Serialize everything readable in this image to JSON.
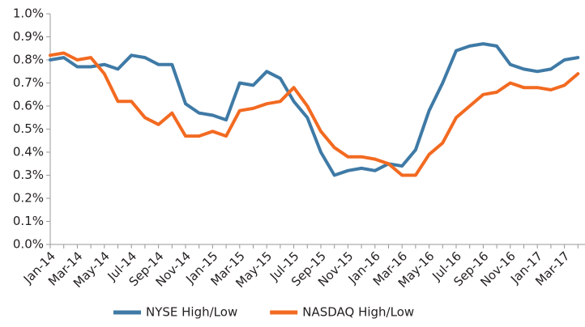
{
  "chart_data": {
    "type": "line",
    "categories": [
      "Jan-14",
      null,
      "Mar-14",
      null,
      "May-14",
      null,
      "Jul-14",
      null,
      "Sep-14",
      null,
      "Nov-14",
      null,
      "Jan-15",
      null,
      "Mar-15",
      null,
      "May-15",
      null,
      "Jul-15",
      null,
      "Sep-15",
      null,
      "Nov-15",
      null,
      "Jan-16",
      null,
      "Mar-16",
      null,
      "May-16",
      null,
      "Jul-16",
      null,
      "Sep-16",
      null,
      "Nov-16",
      null,
      "Jan-17",
      null,
      "Mar-17",
      null
    ],
    "series": [
      {
        "name": "NYSE High/Low",
        "color": "#3f7aa6",
        "values": [
          0.8,
          0.81,
          0.77,
          0.77,
          0.78,
          0.76,
          0.82,
          0.81,
          0.78,
          0.78,
          0.61,
          0.57,
          0.56,
          0.54,
          0.7,
          0.69,
          0.75,
          0.72,
          0.62,
          0.55,
          0.4,
          0.3,
          0.32,
          0.33,
          0.32,
          0.35,
          0.34,
          0.41,
          0.58,
          0.7,
          0.84,
          0.86,
          0.87,
          0.86,
          0.78,
          0.76,
          0.75,
          0.76,
          0.8,
          0.81
        ]
      },
      {
        "name": "NASDAQ High/Low",
        "color": "#f26a21",
        "values": [
          0.82,
          0.83,
          0.8,
          0.81,
          0.74,
          0.62,
          0.62,
          0.55,
          0.52,
          0.57,
          0.47,
          0.47,
          0.49,
          0.47,
          0.58,
          0.59,
          0.61,
          0.62,
          0.68,
          0.6,
          0.49,
          0.42,
          0.38,
          0.38,
          0.37,
          0.35,
          0.3,
          0.3,
          0.39,
          0.44,
          0.55,
          0.6,
          0.65,
          0.66,
          0.7,
          0.68,
          0.68,
          0.67,
          0.69,
          0.74
        ]
      }
    ],
    "ylim": [
      0,
      1.0
    ],
    "yticks": [
      {
        "value": 0,
        "label": "0.0%"
      },
      {
        "value": 0.1,
        "label": "0.1%"
      },
      {
        "value": 0.2,
        "label": "0.2%"
      },
      {
        "value": 0.3,
        "label": "0.3%"
      },
      {
        "value": 0.4,
        "label": "0.4%"
      },
      {
        "value": 0.5,
        "label": "0.5%"
      },
      {
        "value": 0.6,
        "label": "0.6%"
      },
      {
        "value": 0.7,
        "label": "0.7%"
      },
      {
        "value": 0.8,
        "label": "0.8%"
      },
      {
        "value": 0.9,
        "label": "0.9%"
      },
      {
        "value": 1.0,
        "label": "1.0%"
      }
    ],
    "legend": "bottom"
  }
}
